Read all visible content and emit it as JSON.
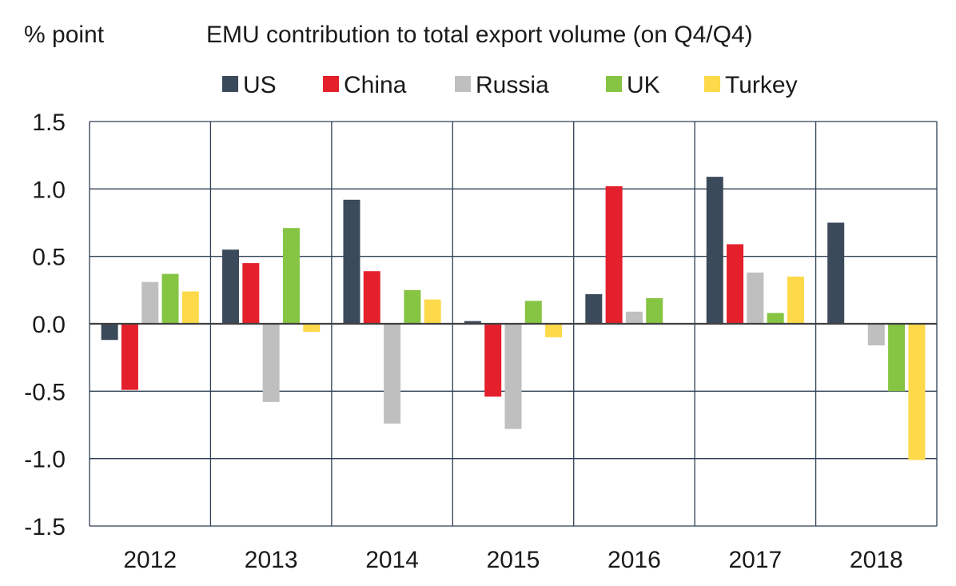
{
  "chart_data": {
    "type": "bar",
    "title": "EMU contribution to total export volume (on Q4/Q4)",
    "ylabel": "% point",
    "xlabel": "",
    "categories": [
      "2012",
      "2013",
      "2014",
      "2015",
      "2016",
      "2017",
      "2018"
    ],
    "ylim": [
      -1.5,
      1.5
    ],
    "yticks": [
      "1.5",
      "1.0",
      "0.5",
      "0.0",
      "-0.5",
      "-1.0",
      "-1.5"
    ],
    "grid": true,
    "legend_position": "top",
    "series": [
      {
        "name": "US",
        "color": "#3b4a5a",
        "values": [
          -0.12,
          0.55,
          0.92,
          0.02,
          0.22,
          1.09,
          0.75
        ]
      },
      {
        "name": "China",
        "color": "#e3202b",
        "values": [
          -0.49,
          0.45,
          0.39,
          -0.54,
          1.02,
          0.59,
          -0.005
        ]
      },
      {
        "name": "Russia",
        "color": "#bfbfbf",
        "values": [
          0.31,
          -0.58,
          -0.74,
          -0.78,
          0.09,
          0.38,
          -0.16
        ]
      },
      {
        "name": "UK",
        "color": "#86c443",
        "values": [
          0.37,
          0.71,
          0.25,
          0.17,
          0.19,
          0.08,
          -0.5
        ]
      },
      {
        "name": "Turkey",
        "color": "#fed94a",
        "values": [
          0.24,
          -0.06,
          0.18,
          -0.1,
          0.0,
          0.35,
          -1.01
        ]
      }
    ]
  }
}
